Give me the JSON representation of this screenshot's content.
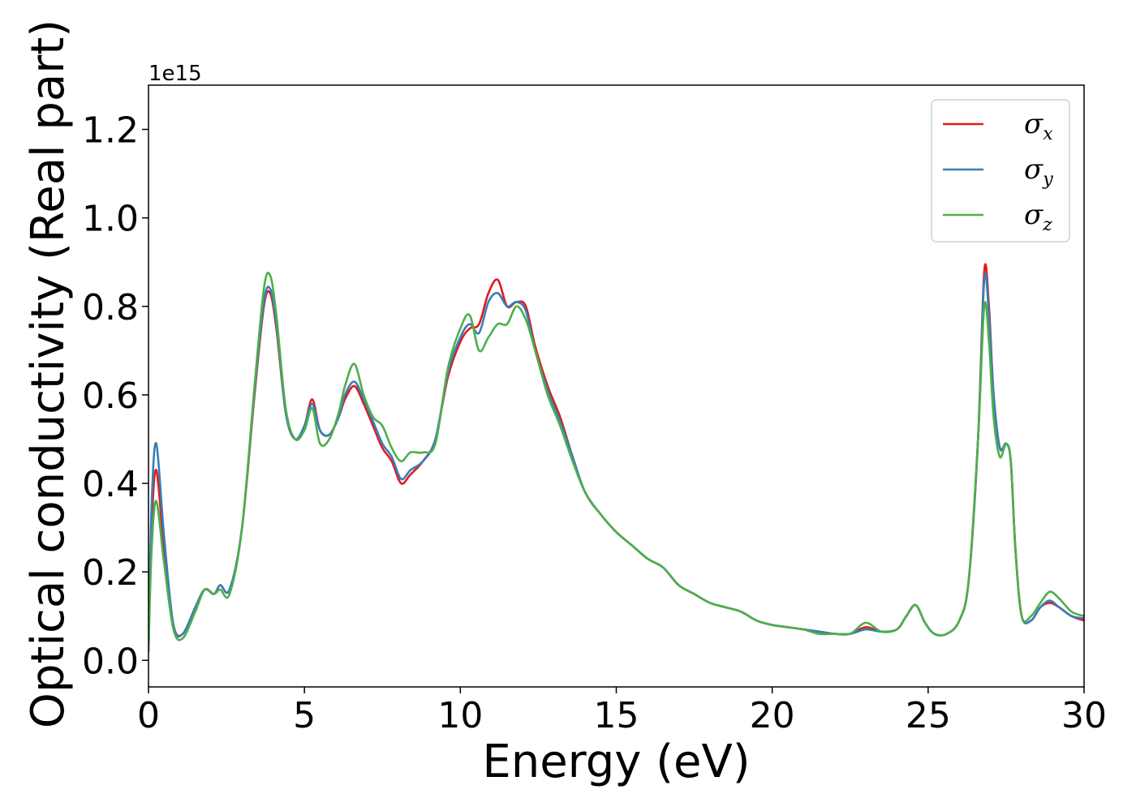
{
  "chart_data": {
    "type": "line",
    "xlabel": "Energy (eV)",
    "ylabel": "Optical conductivity (Real part)",
    "y_offset_label": "1e15",
    "xlim": [
      0,
      30
    ],
    "ylim": [
      -0.06,
      1.3
    ],
    "x_ticks": [
      0,
      5,
      10,
      15,
      20,
      25,
      30
    ],
    "x_tick_labels": [
      "0",
      "5",
      "10",
      "15",
      "20",
      "25",
      "30"
    ],
    "y_ticks": [
      0.0,
      0.2,
      0.4,
      0.6,
      0.8,
      1.0,
      1.2
    ],
    "y_tick_labels": [
      "0.0",
      "0.2",
      "0.4",
      "0.6",
      "0.8",
      "1.0",
      "1.2"
    ],
    "grid": false,
    "legend_position": "top-right",
    "x": [
      0,
      0.1,
      0.25,
      0.5,
      0.8,
      1.1,
      1.5,
      1.8,
      2.1,
      2.3,
      2.6,
      3.0,
      3.4,
      3.7,
      3.9,
      4.1,
      4.4,
      4.7,
      5.0,
      5.25,
      5.5,
      5.8,
      6.1,
      6.3,
      6.6,
      6.9,
      7.2,
      7.5,
      7.8,
      8.1,
      8.4,
      8.8,
      9.2,
      9.6,
      10.0,
      10.3,
      10.6,
      10.9,
      11.2,
      11.5,
      11.8,
      12.1,
      12.4,
      12.8,
      13.2,
      13.6,
      14.0,
      14.5,
      15.0,
      15.5,
      16.0,
      16.5,
      17.0,
      17.5,
      18.0,
      18.5,
      19.0,
      19.5,
      20.0,
      20.5,
      21.0,
      21.5,
      22.0,
      22.5,
      23.0,
      23.5,
      24.0,
      24.3,
      24.6,
      24.9,
      25.2,
      25.6,
      26.0,
      26.3,
      26.6,
      26.8,
      26.95,
      27.1,
      27.3,
      27.5,
      27.65,
      27.8,
      28.0,
      28.3,
      28.6,
      28.9,
      29.2,
      29.6,
      30.0
    ],
    "series": [
      {
        "name": "σx",
        "color": "#e41a1c",
        "values": [
          0.02,
          0.3,
          0.43,
          0.25,
          0.08,
          0.06,
          0.12,
          0.16,
          0.15,
          0.17,
          0.16,
          0.3,
          0.6,
          0.8,
          0.83,
          0.75,
          0.56,
          0.5,
          0.53,
          0.59,
          0.52,
          0.51,
          0.55,
          0.59,
          0.62,
          0.58,
          0.53,
          0.48,
          0.45,
          0.4,
          0.42,
          0.45,
          0.5,
          0.64,
          0.72,
          0.75,
          0.76,
          0.83,
          0.86,
          0.8,
          0.81,
          0.8,
          0.71,
          0.62,
          0.55,
          0.46,
          0.38,
          0.33,
          0.29,
          0.26,
          0.23,
          0.21,
          0.17,
          0.15,
          0.13,
          0.12,
          0.11,
          0.09,
          0.08,
          0.075,
          0.07,
          0.065,
          0.06,
          0.06,
          0.075,
          0.065,
          0.07,
          0.1,
          0.125,
          0.085,
          0.06,
          0.06,
          0.09,
          0.18,
          0.5,
          0.88,
          0.8,
          0.6,
          0.48,
          0.49,
          0.45,
          0.25,
          0.1,
          0.09,
          0.12,
          0.13,
          0.12,
          0.1,
          0.09
        ]
      },
      {
        "name": "σy",
        "color": "#377eb8",
        "values": [
          0.02,
          0.35,
          0.49,
          0.28,
          0.08,
          0.06,
          0.12,
          0.16,
          0.15,
          0.17,
          0.16,
          0.3,
          0.61,
          0.81,
          0.84,
          0.76,
          0.56,
          0.5,
          0.53,
          0.58,
          0.52,
          0.51,
          0.55,
          0.6,
          0.63,
          0.59,
          0.54,
          0.49,
          0.46,
          0.41,
          0.43,
          0.45,
          0.5,
          0.65,
          0.73,
          0.76,
          0.74,
          0.81,
          0.83,
          0.8,
          0.81,
          0.79,
          0.7,
          0.61,
          0.54,
          0.46,
          0.38,
          0.33,
          0.29,
          0.26,
          0.23,
          0.21,
          0.17,
          0.15,
          0.13,
          0.12,
          0.11,
          0.09,
          0.08,
          0.075,
          0.07,
          0.065,
          0.06,
          0.06,
          0.07,
          0.065,
          0.07,
          0.1,
          0.125,
          0.085,
          0.06,
          0.06,
          0.09,
          0.18,
          0.5,
          0.86,
          0.78,
          0.6,
          0.48,
          0.49,
          0.45,
          0.25,
          0.1,
          0.09,
          0.12,
          0.135,
          0.12,
          0.1,
          0.095
        ]
      },
      {
        "name": "σz",
        "color": "#4daf4a",
        "values": [
          0.02,
          0.25,
          0.36,
          0.22,
          0.07,
          0.05,
          0.11,
          0.16,
          0.15,
          0.16,
          0.15,
          0.3,
          0.62,
          0.84,
          0.87,
          0.78,
          0.57,
          0.5,
          0.52,
          0.57,
          0.49,
          0.5,
          0.56,
          0.62,
          0.67,
          0.6,
          0.55,
          0.53,
          0.48,
          0.45,
          0.47,
          0.47,
          0.49,
          0.66,
          0.75,
          0.78,
          0.7,
          0.73,
          0.76,
          0.76,
          0.8,
          0.77,
          0.7,
          0.6,
          0.53,
          0.45,
          0.38,
          0.33,
          0.29,
          0.26,
          0.23,
          0.21,
          0.17,
          0.15,
          0.13,
          0.12,
          0.11,
          0.09,
          0.08,
          0.075,
          0.07,
          0.06,
          0.06,
          0.06,
          0.085,
          0.065,
          0.07,
          0.1,
          0.125,
          0.085,
          0.06,
          0.06,
          0.09,
          0.18,
          0.5,
          0.8,
          0.72,
          0.55,
          0.46,
          0.49,
          0.45,
          0.25,
          0.1,
          0.1,
          0.13,
          0.155,
          0.14,
          0.11,
          0.1
        ]
      }
    ]
  }
}
